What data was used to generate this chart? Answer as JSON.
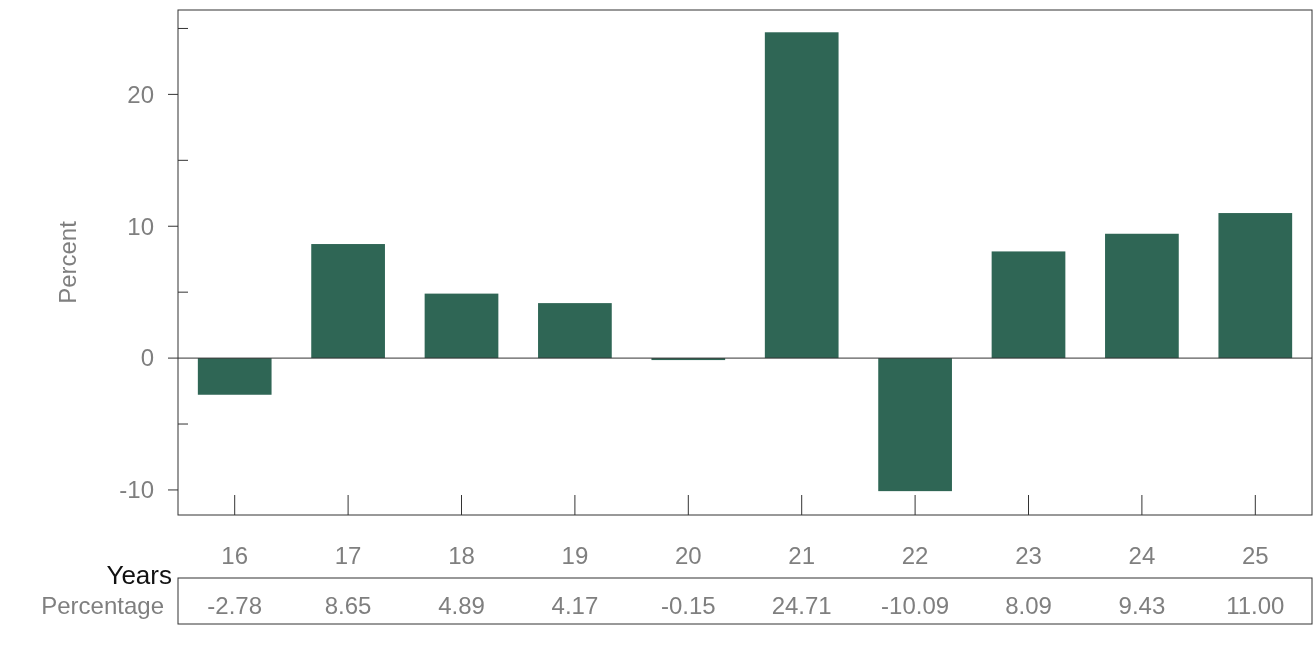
{
  "chart_data": {
    "type": "bar",
    "xlabel": "Years",
    "ylabel": "Percent",
    "categories": [
      "16",
      "17",
      "18",
      "19",
      "20",
      "21",
      "22",
      "23",
      "24",
      "25"
    ],
    "series": [
      {
        "name": "Percentage",
        "color": "#2f6655",
        "values": [
          -2.78,
          8.65,
          4.89,
          4.17,
          -0.15,
          24.71,
          -10.09,
          8.09,
          9.43,
          11.0
        ],
        "value_labels": [
          "-2.78",
          "8.65",
          "4.89",
          "4.17",
          "-0.15",
          "24.71",
          "-10.09",
          "8.09",
          "9.43",
          "11.00"
        ]
      }
    ],
    "ylim": [
      -11.9,
      26.4
    ],
    "yticks": [
      {
        "value": -10,
        "label": "-10"
      },
      {
        "value": -5,
        "label": null
      },
      {
        "value": 0,
        "label": "0"
      },
      {
        "value": 5,
        "label": null
      },
      {
        "value": 10,
        "label": "10"
      },
      {
        "value": 15,
        "label": null
      },
      {
        "value": 20,
        "label": "20"
      },
      {
        "value": 25,
        "label": null
      }
    ],
    "legend": false
  }
}
